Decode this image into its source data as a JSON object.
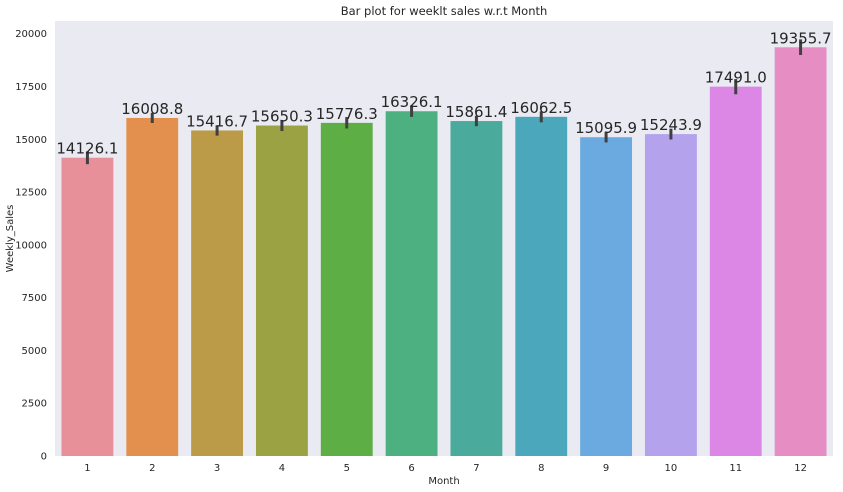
{
  "chart_data": {
    "type": "bar",
    "title": "Bar plot for weeklt sales w.r.t Month",
    "xlabel": "Month",
    "ylabel": "Weekly_Sales",
    "categories": [
      "1",
      "2",
      "3",
      "4",
      "5",
      "6",
      "7",
      "8",
      "9",
      "10",
      "11",
      "12"
    ],
    "values": [
      14126.1,
      16008.8,
      15416.7,
      15650.3,
      15776.3,
      16326.1,
      15861.4,
      16062.5,
      15095.9,
      15243.9,
      17491.0,
      19355.7
    ],
    "data_labels": [
      "14126.1",
      "16008.8",
      "15416.7",
      "15650.3",
      "15776.3",
      "16326.1",
      "15861.4",
      "16062.5",
      "15095.9",
      "15243.9",
      "17491.0",
      "19355.7"
    ],
    "error_low": [
      13820,
      15770,
      15170,
      15390,
      15510,
      16060,
      15620,
      15800,
      14850,
      14990,
      17130,
      18990
    ],
    "error_high": [
      14420,
      16250,
      15660,
      15910,
      16050,
      16600,
      16110,
      16320,
      15350,
      15500,
      17850,
      19730
    ],
    "ylim": [
      0,
      20600
    ],
    "yticks": [
      0,
      2500,
      5000,
      7500,
      10000,
      12500,
      15000,
      17500,
      20000
    ],
    "ytick_labels": [
      "0",
      "2500",
      "5000",
      "7500",
      "10000",
      "12500",
      "15000",
      "17500",
      "20000"
    ],
    "grid": false,
    "colors": [
      "#e8909a",
      "#e3904e",
      "#bb9a48",
      "#9aa244",
      "#5eae46",
      "#4cb080",
      "#4aaa9b",
      "#4ba8bc",
      "#6aaae0",
      "#b4a2ec",
      "#dc86e6",
      "#e68ec4"
    ],
    "background": "#eaeaf2",
    "error_color": "#404040"
  }
}
